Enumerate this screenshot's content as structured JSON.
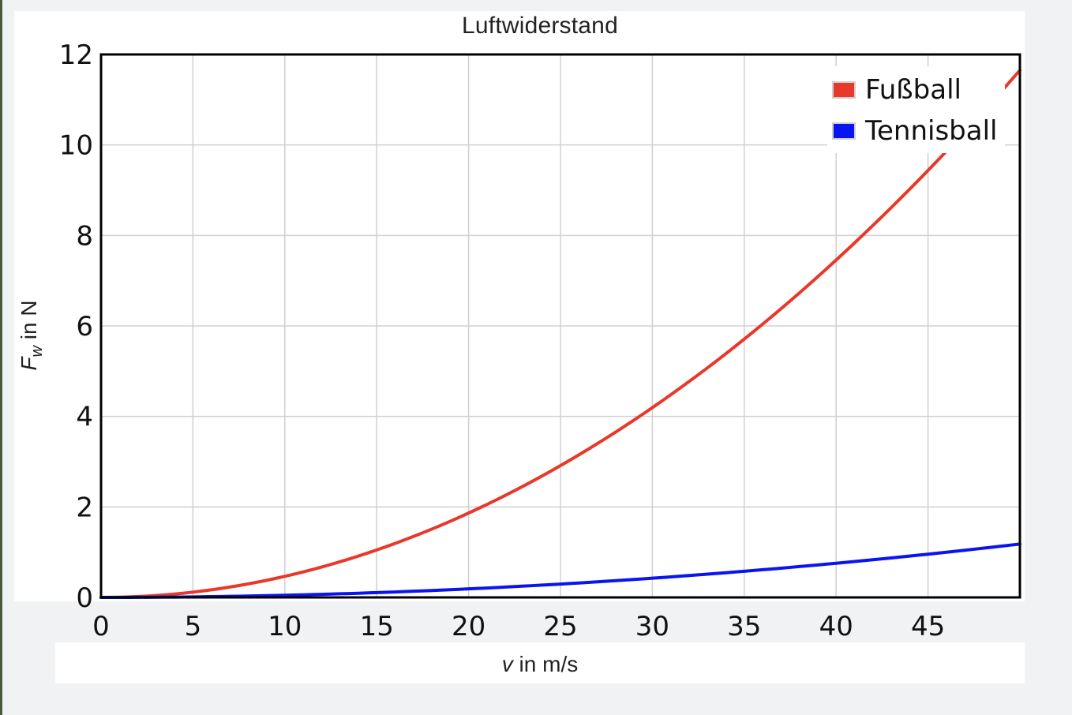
{
  "chart_data": {
    "type": "line",
    "title": "Luftwiderstand",
    "xlabel": {
      "symbol": "v",
      "rest": " in m/s"
    },
    "ylabel": {
      "symbol": "F",
      "subscript": "w",
      "rest": " in N"
    },
    "xlim": [
      0,
      50
    ],
    "ylim": [
      0,
      12
    ],
    "xticks": [
      0,
      5,
      10,
      15,
      20,
      25,
      30,
      35,
      40,
      45
    ],
    "yticks": [
      0,
      2,
      4,
      6,
      8,
      10,
      12
    ],
    "grid": true,
    "legend_position": "top-right",
    "x": [
      0,
      5,
      10,
      15,
      20,
      25,
      30,
      35,
      40,
      45,
      50
    ],
    "series": [
      {
        "name": "Fußball",
        "color": "#e8382a",
        "values": [
          0,
          0.117,
          0.466,
          1.049,
          1.864,
          2.913,
          4.194,
          5.709,
          7.457,
          9.437,
          11.65
        ]
      },
      {
        "name": "Tennisball",
        "color": "#0a14f0",
        "values": [
          0,
          0.012,
          0.047,
          0.106,
          0.189,
          0.295,
          0.425,
          0.578,
          0.755,
          0.956,
          1.18
        ]
      }
    ]
  }
}
